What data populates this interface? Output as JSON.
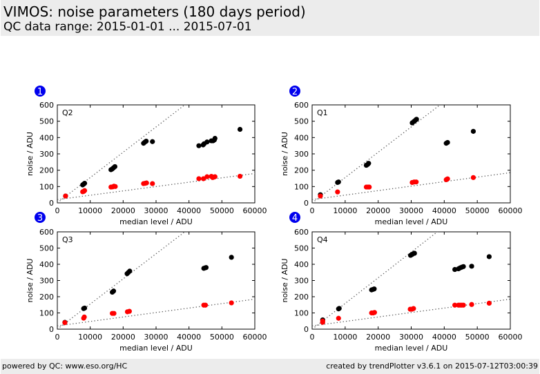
{
  "header": {
    "title": "VIMOS: noise parameters (180 days period)",
    "subtitle": "QC data range: 2015-01-01 ... 2015-07-01"
  },
  "footer": {
    "left": "powered by QC: www.eso.org/HC",
    "right": "created by trendPlotter v3.6.1 on 2015-07-12T03:00:39"
  },
  "colors": {
    "badge": "#0000ee",
    "series_black": "#000000",
    "series_red": "#ff0000",
    "fit_line": "#555555",
    "header_bg": "#ececec"
  },
  "chart_data": [
    {
      "type": "scatter",
      "badge": "1",
      "panel_label": "Q2",
      "xlabel": "median level / ADU",
      "ylabel": "noise / ADU",
      "xlim": [
        0,
        60000
      ],
      "ylim": [
        0,
        600
      ],
      "xticks": [
        0,
        10000,
        20000,
        30000,
        40000,
        50000,
        60000
      ],
      "yticks": [
        0,
        100,
        200,
        300,
        400,
        500,
        600
      ],
      "fit_lines": [
        {
          "name": "black-fit",
          "x": [
            0,
            60000
          ],
          "y": [
            0,
            930
          ]
        },
        {
          "name": "red-fit",
          "x": [
            0,
            60000
          ],
          "y": [
            20,
            180
          ]
        }
      ],
      "series": [
        {
          "name": "black",
          "color": "#000000",
          "points": [
            [
              2500,
              42
            ],
            [
              7700,
              110
            ],
            [
              8000,
              115
            ],
            [
              8300,
              120
            ],
            [
              16300,
              203
            ],
            [
              16700,
              208
            ],
            [
              17100,
              215
            ],
            [
              17500,
              222
            ],
            [
              26200,
              365
            ],
            [
              26600,
              372
            ],
            [
              27000,
              378
            ],
            [
              28900,
              375
            ],
            [
              43000,
              350
            ],
            [
              44300,
              355
            ],
            [
              44600,
              362
            ],
            [
              45500,
              373
            ],
            [
              46800,
              380
            ],
            [
              47300,
              380
            ],
            [
              47700,
              385
            ],
            [
              47900,
              395
            ],
            [
              55500,
              450
            ]
          ]
        },
        {
          "name": "red",
          "color": "#ff0000",
          "points": [
            [
              2500,
              42
            ],
            [
              7700,
              68
            ],
            [
              8000,
              70
            ],
            [
              8300,
              75
            ],
            [
              16300,
              97
            ],
            [
              16800,
              98
            ],
            [
              17200,
              102
            ],
            [
              17600,
              100
            ],
            [
              26200,
              118
            ],
            [
              26700,
              120
            ],
            [
              27100,
              122
            ],
            [
              28900,
              118
            ],
            [
              43000,
              148
            ],
            [
              44400,
              148
            ],
            [
              45500,
              160
            ],
            [
              46800,
              162
            ],
            [
              47200,
              155
            ],
            [
              47600,
              158
            ],
            [
              47900,
              160
            ],
            [
              55500,
              163
            ]
          ]
        }
      ]
    },
    {
      "type": "scatter",
      "badge": "2",
      "panel_label": "Q1",
      "xlabel": "median level / ADU",
      "ylabel": "noise / ADU",
      "xlim": [
        0,
        60000
      ],
      "ylim": [
        0,
        600
      ],
      "xticks": [
        0,
        10000,
        20000,
        30000,
        40000,
        50000,
        60000
      ],
      "yticks": [
        0,
        100,
        200,
        300,
        400,
        500,
        600
      ],
      "fit_lines": [
        {
          "name": "black-fit",
          "x": [
            0,
            60000
          ],
          "y": [
            0,
            930
          ]
        },
        {
          "name": "red-fit",
          "x": [
            0,
            60000
          ],
          "y": [
            20,
            185
          ]
        }
      ],
      "series": [
        {
          "name": "black",
          "color": "#000000",
          "points": [
            [
              2500,
              50
            ],
            [
              7700,
              125
            ],
            [
              8000,
              128
            ],
            [
              16400,
              230
            ],
            [
              16800,
              235
            ],
            [
              17100,
              242
            ],
            [
              30300,
              490
            ],
            [
              30800,
              498
            ],
            [
              31200,
              505
            ],
            [
              31600,
              512
            ],
            [
              40600,
              365
            ],
            [
              41000,
              370
            ],
            [
              48800,
              438
            ]
          ]
        },
        {
          "name": "red",
          "color": "#ff0000",
          "points": [
            [
              2500,
              42
            ],
            [
              7700,
              67
            ],
            [
              16400,
              97
            ],
            [
              16900,
              97
            ],
            [
              17300,
              97
            ],
            [
              30300,
              125
            ],
            [
              30900,
              128
            ],
            [
              31500,
              128
            ],
            [
              40600,
              142
            ],
            [
              41000,
              147
            ],
            [
              48800,
              155
            ]
          ]
        }
      ]
    },
    {
      "type": "scatter",
      "badge": "3",
      "panel_label": "Q3",
      "xlabel": "median level / ADU",
      "ylabel": "noise / ADU",
      "xlim": [
        0,
        60000
      ],
      "ylim": [
        0,
        600
      ],
      "xticks": [
        0,
        10000,
        20000,
        30000,
        40000,
        50000,
        60000
      ],
      "yticks": [
        0,
        100,
        200,
        300,
        400,
        500,
        600
      ],
      "fit_lines": [
        {
          "name": "black-fit",
          "x": [
            0,
            60000
          ],
          "y": [
            0,
            930
          ]
        },
        {
          "name": "red-fit",
          "x": [
            0,
            60000
          ],
          "y": [
            20,
            185
          ]
        }
      ],
      "series": [
        {
          "name": "black",
          "color": "#000000",
          "points": [
            [
              2300,
              42
            ],
            [
              8000,
              127
            ],
            [
              8300,
              130
            ],
            [
              16700,
              228
            ],
            [
              17100,
              235
            ],
            [
              21200,
              342
            ],
            [
              21600,
              350
            ],
            [
              22000,
              358
            ],
            [
              44500,
              375
            ],
            [
              44900,
              378
            ],
            [
              45200,
              380
            ],
            [
              52900,
              443
            ]
          ]
        },
        {
          "name": "red",
          "color": "#ff0000",
          "points": [
            [
              2300,
              40
            ],
            [
              8000,
              68
            ],
            [
              8200,
              75
            ],
            [
              16700,
              97
            ],
            [
              17200,
              97
            ],
            [
              21300,
              107
            ],
            [
              21900,
              110
            ],
            [
              44500,
              148
            ],
            [
              45000,
              148
            ],
            [
              52900,
              162
            ]
          ]
        }
      ]
    },
    {
      "type": "scatter",
      "badge": "4",
      "panel_label": "Q4",
      "xlabel": "median level / ADU",
      "ylabel": "noise / ADU",
      "xlim": [
        0,
        60000
      ],
      "ylim": [
        0,
        600
      ],
      "xticks": [
        0,
        10000,
        20000,
        30000,
        40000,
        50000,
        60000
      ],
      "yticks": [
        0,
        100,
        200,
        300,
        400,
        500,
        600
      ],
      "fit_lines": [
        {
          "name": "black-fit",
          "x": [
            0,
            60000
          ],
          "y": [
            0,
            950
          ]
        },
        {
          "name": "red-fit",
          "x": [
            0,
            60000
          ],
          "y": [
            20,
            185
          ]
        }
      ],
      "series": [
        {
          "name": "black",
          "color": "#000000",
          "points": [
            [
              3200,
              57
            ],
            [
              8000,
              125
            ],
            [
              8200,
              128
            ],
            [
              18000,
              242
            ],
            [
              18400,
              245
            ],
            [
              18800,
              248
            ],
            [
              29800,
              455
            ],
            [
              30200,
              460
            ],
            [
              30600,
              465
            ],
            [
              31000,
              468
            ],
            [
              43200,
              368
            ],
            [
              44300,
              372
            ],
            [
              44800,
              378
            ],
            [
              45300,
              382
            ],
            [
              45800,
              386
            ],
            [
              48300,
              388
            ],
            [
              53600,
              447
            ]
          ]
        },
        {
          "name": "red",
          "color": "#ff0000",
          "points": [
            [
              3200,
              42
            ],
            [
              3200,
              50
            ],
            [
              8000,
              67
            ],
            [
              18000,
              100
            ],
            [
              18500,
              100
            ],
            [
              18900,
              103
            ],
            [
              29700,
              123
            ],
            [
              30200,
              123
            ],
            [
              30700,
              127
            ],
            [
              43200,
              148
            ],
            [
              44300,
              148
            ],
            [
              44800,
              148
            ],
            [
              45300,
              148
            ],
            [
              45800,
              148
            ],
            [
              48300,
              152
            ],
            [
              53600,
              160
            ]
          ]
        }
      ]
    }
  ]
}
